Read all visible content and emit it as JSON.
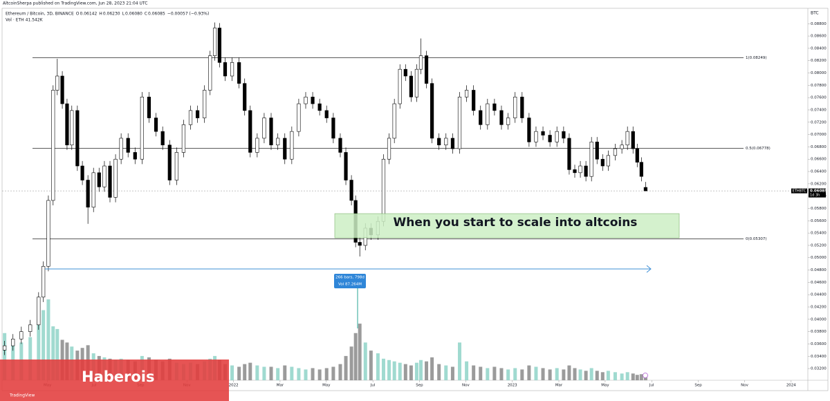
{
  "header": {
    "published": "AltcoinSherpa published on TradingView.com, Jun 28, 2023 21:04 UTC"
  },
  "branding": {
    "watermark": "Haberois",
    "logo": "TradingView"
  },
  "chart_data": {
    "type": "candlestick",
    "symbol": "Ethereum / Bitcoin, 3D, BINANCE",
    "legend_values": [
      {
        "key": "O",
        "value": 0.06142,
        "label": "0.06142"
      },
      {
        "key": "H",
        "value": 0.0623,
        "label": "0.06230"
      },
      {
        "key": "L",
        "value": 0.0608,
        "label": "0.06080"
      },
      {
        "key": "C",
        "value": 0.06085,
        "label": "0.06085"
      }
    ],
    "change": "−0.00057 (−0.93%)",
    "volume_title": "Vol · ETH",
    "volume_label": "41.542K",
    "axis_unit": "BTC",
    "symbol_tag": "ETHBTC",
    "countdown": "1d 3h",
    "up_color": "#ffffff",
    "down_color": "#000000",
    "volume_up_color": "#8fd3c8",
    "volume_down_color": "#8a8a8a",
    "candles": {
      "x": [
        2021.179,
        2021.209,
        2021.239,
        2021.271,
        2021.301,
        2021.318,
        2021.336,
        2021.353,
        2021.368,
        2021.386,
        2021.403,
        2021.42,
        2021.44,
        2021.458,
        2021.478,
        2021.498,
        2021.518,
        2021.537,
        2021.557,
        2021.577,
        2021.597,
        2021.622,
        2021.647,
        2021.672,
        2021.697,
        2021.722,
        2021.746,
        2021.771,
        2021.796,
        2021.821,
        2021.846,
        2021.871,
        2021.896,
        2021.916,
        2021.933,
        2021.95,
        2021.97,
        2021.995,
        2022.02,
        2022.04,
        2022.06,
        2022.085,
        2022.11,
        2022.135,
        2022.159,
        2022.184,
        2022.209,
        2022.234,
        2022.259,
        2022.284,
        2022.309,
        2022.334,
        2022.358,
        2022.383,
        2022.403,
        2022.423,
        2022.438,
        2022.453,
        2022.473,
        2022.493,
        2022.518,
        2022.538,
        2022.558,
        2022.577,
        2022.597,
        2022.617,
        2022.637,
        2022.657,
        2022.672,
        2022.692,
        2022.712,
        2022.737,
        2022.762,
        2022.786,
        2022.811,
        2022.836,
        2022.861,
        2022.886,
        2022.911,
        2022.936,
        2022.961,
        2022.985,
        2023.01,
        2023.035,
        2023.06,
        2023.085,
        2023.11,
        2023.135,
        2023.16,
        2023.184,
        2023.204,
        2023.224,
        2023.244,
        2023.264,
        2023.284,
        2023.304,
        2023.324,
        2023.344,
        2023.369,
        2023.393,
        2023.413,
        2023.433,
        2023.448,
        2023.463,
        2023.478
      ],
      "open": [
        0.035,
        0.0357,
        0.0368,
        0.038,
        0.0391,
        0.0436,
        0.0486,
        0.0593,
        0.0772,
        0.0795,
        0.075,
        0.0683,
        0.0739,
        0.0649,
        0.0626,
        0.0582,
        0.0638,
        0.0615,
        0.0649,
        0.0598,
        0.066,
        0.0694,
        0.0671,
        0.066,
        0.0761,
        0.0727,
        0.0705,
        0.0683,
        0.0626,
        0.0671,
        0.0716,
        0.0739,
        0.0727,
        0.0772,
        0.0828,
        0.0873,
        0.0817,
        0.0795,
        0.0817,
        0.0783,
        0.0739,
        0.0671,
        0.0694,
        0.0727,
        0.0683,
        0.0694,
        0.066,
        0.0705,
        0.075,
        0.0761,
        0.075,
        0.0739,
        0.0727,
        0.0694,
        0.0671,
        0.0626,
        0.0593,
        0.0525,
        0.052,
        0.0548,
        0.0537,
        0.0559,
        0.066,
        0.0694,
        0.075,
        0.0806,
        0.0795,
        0.0761,
        0.0806,
        0.0828,
        0.0783,
        0.0694,
        0.0683,
        0.0694,
        0.0677,
        0.0761,
        0.0772,
        0.0739,
        0.0716,
        0.075,
        0.0739,
        0.0716,
        0.0727,
        0.0761,
        0.0727,
        0.0688,
        0.0705,
        0.0699,
        0.0688,
        0.0705,
        0.0694,
        0.0643,
        0.0638,
        0.0649,
        0.0632,
        0.0688,
        0.066,
        0.0649,
        0.0666,
        0.0677,
        0.0683,
        0.0705,
        0.0677,
        0.0655,
        0.06142
      ],
      "high": [
        0.0365,
        0.0376,
        0.0388,
        0.0399,
        0.0444,
        0.0494,
        0.0601,
        0.078,
        0.0823,
        0.0803,
        0.0758,
        0.0747,
        0.0747,
        0.0657,
        0.0634,
        0.0646,
        0.0646,
        0.0657,
        0.0657,
        0.0668,
        0.0702,
        0.0702,
        0.0679,
        0.0769,
        0.0769,
        0.0735,
        0.0713,
        0.0691,
        0.0679,
        0.0724,
        0.0747,
        0.0747,
        0.078,
        0.0836,
        0.0882,
        0.0881,
        0.0825,
        0.0825,
        0.0825,
        0.0791,
        0.0747,
        0.0702,
        0.0735,
        0.0735,
        0.0702,
        0.0702,
        0.0713,
        0.0758,
        0.0769,
        0.0769,
        0.0758,
        0.0747,
        0.0735,
        0.0702,
        0.0679,
        0.0634,
        0.0601,
        0.0533,
        0.0556,
        0.0556,
        0.0567,
        0.0668,
        0.0702,
        0.0758,
        0.0814,
        0.0814,
        0.0803,
        0.0814,
        0.0856,
        0.0836,
        0.0791,
        0.0702,
        0.0702,
        0.0702,
        0.0769,
        0.078,
        0.078,
        0.0747,
        0.0758,
        0.0758,
        0.0747,
        0.0735,
        0.0769,
        0.0769,
        0.0735,
        0.0713,
        0.0713,
        0.0707,
        0.0713,
        0.0713,
        0.0702,
        0.0651,
        0.0657,
        0.0657,
        0.0696,
        0.0696,
        0.0668,
        0.0674,
        0.0685,
        0.0691,
        0.0713,
        0.0713,
        0.0685,
        0.0663,
        0.0623
      ],
      "low": [
        0.0342,
        0.0349,
        0.036,
        0.0372,
        0.0383,
        0.0428,
        0.0478,
        0.0585,
        0.0764,
        0.0742,
        0.0675,
        0.0675,
        0.0641,
        0.0618,
        0.0555,
        0.0574,
        0.0607,
        0.0607,
        0.059,
        0.059,
        0.0652,
        0.0663,
        0.0652,
        0.0652,
        0.0719,
        0.0697,
        0.0675,
        0.0618,
        0.0618,
        0.0663,
        0.0708,
        0.0719,
        0.0719,
        0.0764,
        0.082,
        0.0809,
        0.0787,
        0.0787,
        0.0775,
        0.0731,
        0.0663,
        0.0663,
        0.0686,
        0.0675,
        0.0675,
        0.0652,
        0.0652,
        0.0697,
        0.0742,
        0.0742,
        0.0731,
        0.0719,
        0.0686,
        0.0663,
        0.0618,
        0.0585,
        0.0517,
        0.0502,
        0.0512,
        0.0529,
        0.0529,
        0.0551,
        0.0652,
        0.0686,
        0.0742,
        0.0787,
        0.0753,
        0.0753,
        0.0798,
        0.0775,
        0.0686,
        0.0675,
        0.0675,
        0.0669,
        0.0669,
        0.0753,
        0.0731,
        0.0708,
        0.0708,
        0.0731,
        0.0708,
        0.0708,
        0.0719,
        0.0719,
        0.068,
        0.068,
        0.0691,
        0.068,
        0.068,
        0.0686,
        0.0635,
        0.063,
        0.063,
        0.0624,
        0.0624,
        0.0652,
        0.0641,
        0.0641,
        0.0658,
        0.0669,
        0.0675,
        0.0669,
        0.0647,
        0.0624,
        0.0608
      ],
      "close": [
        0.0357,
        0.0368,
        0.038,
        0.0391,
        0.0436,
        0.0486,
        0.0593,
        0.0772,
        0.0795,
        0.075,
        0.0683,
        0.0739,
        0.0649,
        0.0626,
        0.0582,
        0.0638,
        0.0615,
        0.0649,
        0.0598,
        0.066,
        0.0694,
        0.0671,
        0.066,
        0.0761,
        0.0727,
        0.0705,
        0.0683,
        0.0626,
        0.0671,
        0.0716,
        0.0739,
        0.0727,
        0.0772,
        0.0828,
        0.0873,
        0.0817,
        0.0795,
        0.0817,
        0.0783,
        0.0739,
        0.0671,
        0.0694,
        0.0727,
        0.0683,
        0.0694,
        0.066,
        0.0705,
        0.075,
        0.0761,
        0.075,
        0.0739,
        0.0727,
        0.0694,
        0.0671,
        0.0626,
        0.0593,
        0.0525,
        0.052,
        0.0548,
        0.0537,
        0.0559,
        0.066,
        0.0694,
        0.075,
        0.0806,
        0.0795,
        0.0761,
        0.0806,
        0.0828,
        0.0783,
        0.0694,
        0.0683,
        0.0694,
        0.0677,
        0.0761,
        0.0772,
        0.0739,
        0.0716,
        0.075,
        0.0739,
        0.0716,
        0.0727,
        0.0761,
        0.0727,
        0.0688,
        0.0705,
        0.0699,
        0.0688,
        0.0705,
        0.0694,
        0.0643,
        0.0638,
        0.0649,
        0.0632,
        0.0688,
        0.066,
        0.0649,
        0.0666,
        0.0677,
        0.0683,
        0.0705,
        0.0677,
        0.0655,
        0.0632,
        0.06085
      ],
      "volume": [
        350000,
        300000,
        280000,
        320000,
        450000,
        520000,
        600000,
        400000,
        380000,
        300000,
        280000,
        250000,
        220000,
        240000,
        260000,
        200000,
        180000,
        170000,
        160000,
        150000,
        160000,
        150000,
        140000,
        180000,
        170000,
        150000,
        140000,
        160000,
        130000,
        120000,
        130000,
        120000,
        140000,
        160000,
        180000,
        150000,
        120000,
        110000,
        100000,
        120000,
        130000,
        110000,
        100000,
        100000,
        90000,
        110000,
        100000,
        90000,
        80000,
        90000,
        80000,
        90000,
        100000,
        120000,
        180000,
        250000,
        350000,
        420000,
        280000,
        220000,
        200000,
        160000,
        150000,
        140000,
        130000,
        120000,
        110000,
        130000,
        150000,
        140000,
        170000,
        120000,
        110000,
        100000,
        280000,
        140000,
        110000,
        100000,
        90000,
        100000,
        90000,
        80000,
        90000,
        80000,
        110000,
        100000,
        90000,
        80000,
        90000,
        80000,
        110000,
        90000,
        80000,
        70000,
        90000,
        70000,
        60000,
        70000,
        60000,
        50000,
        60000,
        50000,
        40000,
        45000,
        41542
      ]
    },
    "xlim": [
      2021.17,
      2024.06
    ],
    "ylim": [
      0.0301,
      0.0905
    ],
    "xticks": [
      {
        "value": 2021.333,
        "label": "May"
      },
      {
        "value": 2021.5,
        "label": "Jul"
      },
      {
        "value": 2021.667,
        "label": "Sep"
      },
      {
        "value": 2021.833,
        "label": "Nov"
      },
      2022,
      {
        "value": 2022.167,
        "label": "Mar"
      },
      {
        "value": 2022.333,
        "label": "May"
      },
      {
        "value": 2022.5,
        "label": "Jul"
      },
      {
        "value": 2022.667,
        "label": "Sep"
      },
      {
        "value": 2022.833,
        "label": "Nov"
      },
      2023,
      {
        "value": 2023.167,
        "label": "Mar"
      },
      {
        "value": 2023.333,
        "label": "May"
      },
      {
        "value": 2023.5,
        "label": "Jul"
      },
      {
        "value": 2023.667,
        "label": "Sep"
      },
      {
        "value": 2023.833,
        "label": "Nov"
      },
      2024
    ],
    "yticks": [
      {
        "value": 0.032,
        "label": "0.03200"
      },
      {
        "value": 0.034,
        "label": "0.03400"
      },
      {
        "value": 0.036,
        "label": "0.03600"
      },
      {
        "value": 0.038,
        "label": "0.03800"
      },
      {
        "value": 0.04,
        "label": "0.04000"
      },
      {
        "value": 0.042,
        "label": "0.04200"
      },
      {
        "value": 0.044,
        "label": "0.04400"
      },
      {
        "value": 0.046,
        "label": "0.04600"
      },
      {
        "value": 0.048,
        "label": "0.04800"
      },
      {
        "value": 0.05,
        "label": "0.05000"
      },
      {
        "value": 0.052,
        "label": "0.05200"
      },
      {
        "value": 0.054,
        "label": "0.05400"
      },
      {
        "value": 0.056,
        "label": "0.05600"
      },
      {
        "value": 0.058,
        "label": "0.05800"
      },
      {
        "value": 0.06,
        "label": "0.06000"
      },
      {
        "value": 0.062,
        "label": "0.06200"
      },
      {
        "value": 0.064,
        "label": "0.06400"
      },
      {
        "value": 0.066,
        "label": "0.06600"
      },
      {
        "value": 0.068,
        "label": "0.06800"
      },
      {
        "value": 0.07,
        "label": "0.07000"
      },
      {
        "value": 0.072,
        "label": "0.07200"
      },
      {
        "value": 0.074,
        "label": "0.07400"
      },
      {
        "value": 0.076,
        "label": "0.07600"
      },
      {
        "value": 0.078,
        "label": "0.07800"
      },
      {
        "value": 0.08,
        "label": "0.08000"
      },
      {
        "value": 0.082,
        "label": "0.08200"
      },
      {
        "value": 0.084,
        "label": "0.08400"
      },
      {
        "value": 0.086,
        "label": "0.08600"
      },
      {
        "value": 0.088,
        "label": "0.08800"
      }
    ],
    "levels": [
      {
        "value": 0.08249,
        "label": "1(0.08249)"
      },
      {
        "value": 0.06778,
        "label": "0.5(0.06778)"
      },
      {
        "value": 0.05307,
        "label": "0(0.05307)"
      }
    ],
    "annotation": "When you start to scale into altcoins",
    "measure": [
      "266 bars, 798d",
      "Vol 87.264M"
    ]
  }
}
